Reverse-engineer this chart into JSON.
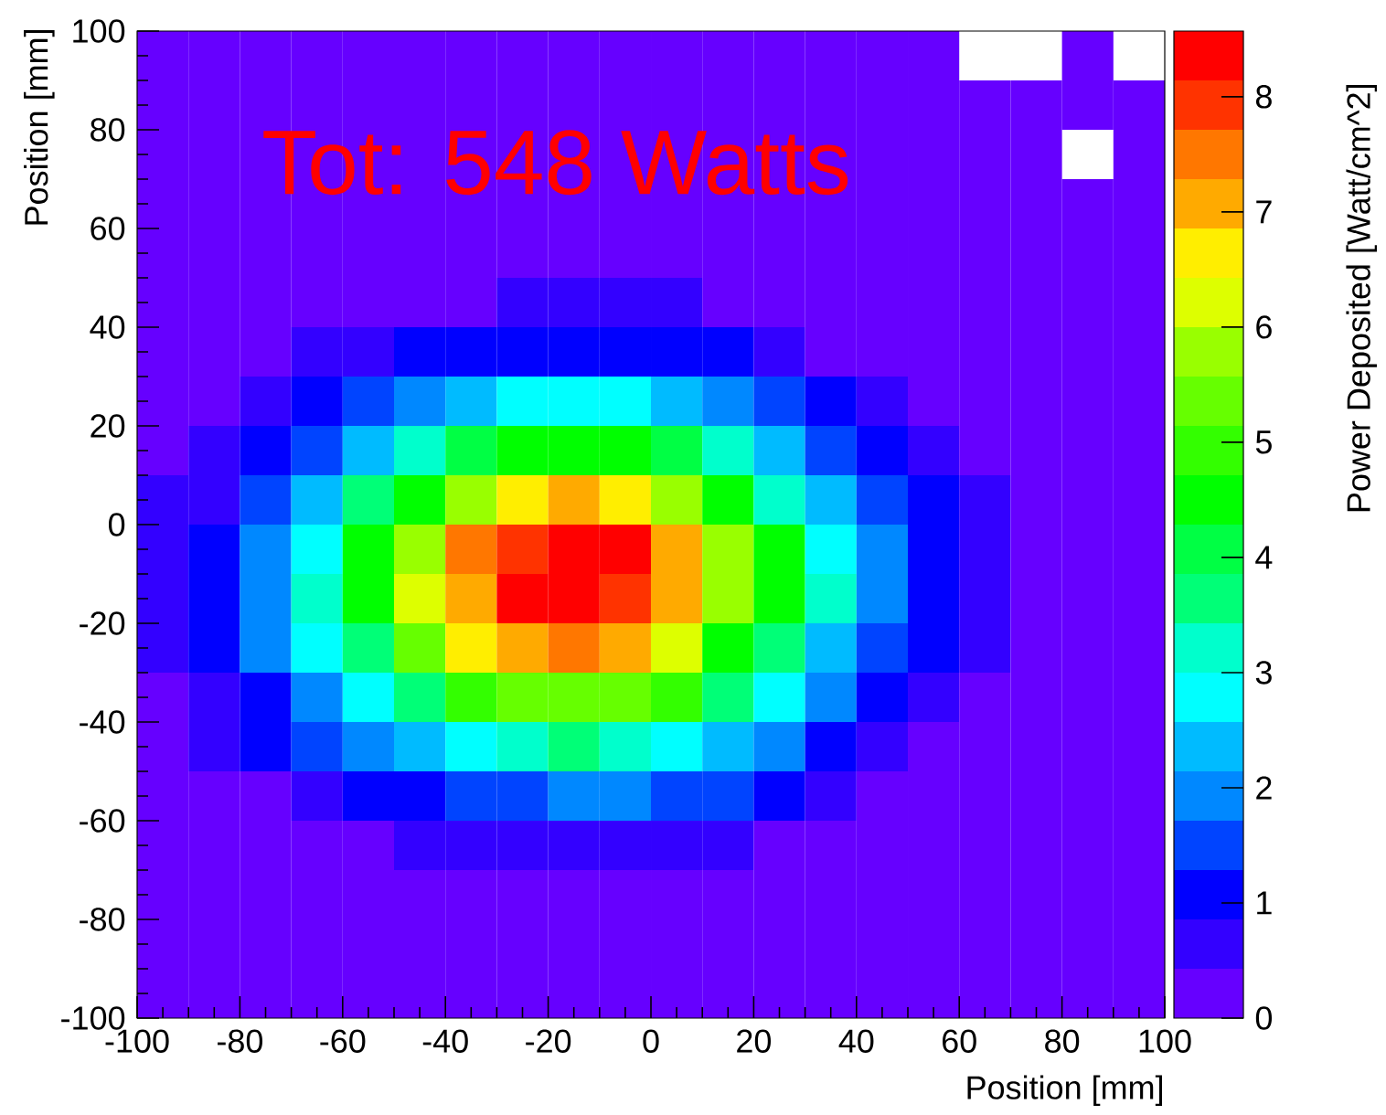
{
  "chart_data": {
    "type": "heatmap",
    "xlabel": "Position [mm]",
    "ylabel": "Position [mm]",
    "clabel": "Power Deposited [Watt/cm^2]",
    "annotations": [
      "Tot: 548 Watts"
    ],
    "cells": [
      [
        0.2,
        0.2,
        0.2,
        0.2,
        0.2,
        0.2,
        0.2,
        0.2,
        0.2,
        0.2,
        0.2,
        0.2,
        0.2,
        0.2,
        0.2,
        0.2,
        null,
        null,
        0.2,
        null
      ],
      [
        0.2,
        0.2,
        0.2,
        0.2,
        0.2,
        0.2,
        0.2,
        0.2,
        0.2,
        0.2,
        0.2,
        0.2,
        0.2,
        0.2,
        0.2,
        0.2,
        0.2,
        0.2,
        0.2,
        0.2
      ],
      [
        0.2,
        0.2,
        0.2,
        0.2,
        0.2,
        0.2,
        0.2,
        0.2,
        0.2,
        0.2,
        0.2,
        0.2,
        0.2,
        0.2,
        0.2,
        0.2,
        0.2,
        0.2,
        null,
        0.2
      ],
      [
        0.2,
        0.2,
        0.2,
        0.2,
        0.2,
        0.2,
        0.2,
        0.2,
        0.2,
        0.2,
        0.2,
        0.2,
        0.2,
        0.2,
        0.2,
        0.2,
        0.2,
        0.2,
        0.2,
        0.2
      ],
      [
        0.2,
        0.2,
        0.2,
        0.2,
        0.2,
        0.2,
        0.2,
        0.2,
        0.2,
        0.2,
        0.2,
        0.2,
        0.2,
        0.2,
        0.2,
        0.2,
        0.2,
        0.2,
        0.2,
        0.2
      ],
      [
        0.2,
        0.2,
        0.2,
        0.2,
        0.2,
        0.2,
        0.2,
        0.6,
        0.6,
        0.6,
        0.6,
        0.2,
        0.2,
        0.2,
        0.2,
        0.2,
        0.2,
        0.2,
        0.2,
        0.2
      ],
      [
        0.2,
        0.2,
        0.2,
        0.6,
        0.6,
        1.1,
        1.1,
        1.1,
        1.1,
        1.1,
        1.1,
        1.1,
        0.6,
        0.2,
        0.2,
        0.2,
        0.2,
        0.2,
        0.2,
        0.2
      ],
      [
        0.2,
        0.2,
        0.6,
        1.1,
        1.5,
        1.9,
        2.4,
        2.8,
        2.8,
        2.8,
        2.4,
        1.9,
        1.5,
        1.1,
        0.6,
        0.2,
        0.2,
        0.2,
        0.2,
        0.2
      ],
      [
        0.2,
        0.6,
        1.1,
        1.5,
        2.4,
        3.2,
        4.1,
        4.5,
        4.5,
        4.5,
        4.1,
        3.2,
        2.4,
        1.5,
        1.1,
        0.6,
        0.2,
        0.2,
        0.2,
        0.2
      ],
      [
        0.6,
        0.6,
        1.5,
        2.4,
        3.6,
        4.5,
        5.8,
        6.6,
        7.1,
        6.6,
        5.8,
        4.5,
        3.2,
        2.4,
        1.5,
        1.1,
        0.6,
        0.2,
        0.2,
        0.2
      ],
      [
        0.6,
        1.1,
        1.9,
        2.8,
        4.5,
        5.8,
        7.5,
        7.9,
        8.4,
        8.4,
        7.1,
        5.8,
        4.5,
        2.8,
        1.9,
        1.1,
        0.6,
        0.2,
        0.2,
        0.2
      ],
      [
        0.6,
        1.1,
        1.9,
        3.2,
        4.5,
        6.2,
        7.1,
        8.4,
        8.4,
        7.9,
        7.1,
        5.8,
        4.5,
        3.2,
        1.9,
        1.1,
        0.6,
        0.2,
        0.2,
        0.2
      ],
      [
        0.6,
        1.1,
        1.9,
        2.8,
        3.6,
        5.4,
        6.6,
        7.1,
        7.5,
        7.1,
        6.2,
        4.5,
        3.6,
        2.4,
        1.5,
        1.1,
        0.6,
        0.2,
        0.2,
        0.2
      ],
      [
        0.2,
        0.6,
        1.1,
        1.9,
        2.8,
        3.6,
        4.9,
        5.4,
        5.4,
        5.4,
        4.9,
        3.6,
        2.8,
        1.9,
        1.1,
        0.6,
        0.2,
        0.2,
        0.2,
        0.2
      ],
      [
        0.2,
        0.6,
        1.1,
        1.5,
        1.9,
        2.4,
        2.8,
        3.2,
        3.6,
        3.2,
        2.8,
        2.4,
        1.9,
        1.1,
        0.6,
        0.2,
        0.2,
        0.2,
        0.2,
        0.2
      ],
      [
        0.2,
        0.2,
        0.2,
        0.6,
        1.1,
        1.1,
        1.5,
        1.5,
        1.9,
        1.9,
        1.5,
        1.5,
        1.1,
        0.6,
        0.2,
        0.2,
        0.2,
        0.2,
        0.2,
        0.2
      ],
      [
        0.2,
        0.2,
        0.2,
        0.2,
        0.2,
        0.6,
        0.6,
        0.6,
        0.6,
        0.6,
        0.6,
        0.6,
        0.2,
        0.2,
        0.2,
        0.2,
        0.2,
        0.2,
        0.2,
        0.2
      ],
      [
        0.2,
        0.2,
        0.2,
        0.2,
        0.2,
        0.2,
        0.2,
        0.2,
        0.2,
        0.2,
        0.2,
        0.2,
        0.2,
        0.2,
        0.2,
        0.2,
        0.2,
        0.2,
        0.2,
        0.2
      ],
      [
        0.2,
        0.2,
        0.2,
        0.2,
        0.2,
        0.2,
        0.2,
        0.2,
        0.2,
        0.2,
        0.2,
        0.2,
        0.2,
        0.2,
        0.2,
        0.2,
        0.2,
        0.2,
        0.2,
        0.2
      ],
      [
        0.2,
        0.2,
        0.2,
        0.2,
        0.2,
        0.2,
        0.2,
        0.2,
        0.2,
        0.2,
        0.2,
        0.2,
        0.2,
        0.2,
        0.2,
        0.2,
        0.2,
        0.2,
        0.2,
        0.2
      ]
    ],
    "clim": [
      0,
      8.57
    ],
    "cticks": [
      0,
      1,
      2,
      3,
      4,
      5,
      6,
      7,
      8
    ],
    "xlim": [
      -100,
      100
    ],
    "xticks": [
      -100,
      -80,
      -60,
      -40,
      -20,
      0,
      20,
      40,
      60,
      80,
      100
    ],
    "ylim": [
      -100,
      100
    ],
    "yticks": [
      -100,
      -80,
      -60,
      -40,
      -20,
      0,
      20,
      40,
      60,
      80,
      100
    ]
  }
}
